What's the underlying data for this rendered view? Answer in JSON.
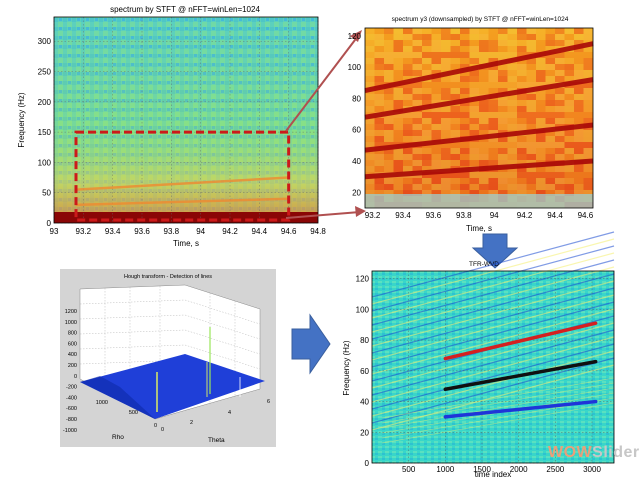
{
  "chart_data": [
    {
      "type": "heatmap",
      "title": "spectrum by STFT @ nFFT=winLen=1024",
      "xlabel": "Time, s",
      "ylabel": "Frequency (Hz)",
      "xlim": [
        93,
        94.8
      ],
      "ylim": [
        0,
        340
      ],
      "xticks": [
        "93",
        "93.2",
        "93.4",
        "93.6",
        "93.8",
        "94",
        "94.2",
        "94.4",
        "94.6",
        "94.8"
      ],
      "yticks": [
        "0",
        "50",
        "100",
        "150",
        "200",
        "250",
        "300"
      ],
      "highlight_box": {
        "time": [
          93.15,
          94.6
        ],
        "frequency": [
          5,
          150
        ],
        "style": "dashed",
        "color": "#cc1a1a"
      },
      "lines": [
        {
          "name": "line1",
          "time": [
            93.15,
            94.6
          ],
          "frequency": [
            30,
            40
          ]
        },
        {
          "name": "line2",
          "time": [
            93.15,
            94.6
          ],
          "frequency": [
            55,
            75
          ]
        }
      ]
    },
    {
      "type": "heatmap",
      "title": "spectrum y3 (downsampled) by STFT @ nFFT=winLen=1024",
      "xlabel": "Time, s",
      "ylabel": "",
      "xlim": [
        93.15,
        94.65
      ],
      "ylim": [
        10,
        125
      ],
      "xticks": [
        "93.2",
        "93.4",
        "93.6",
        "93.8",
        "94",
        "94.2",
        "94.4",
        "94.6"
      ],
      "yticks": [
        "20",
        "40",
        "60",
        "80",
        "100",
        "120"
      ],
      "lines": [
        {
          "time": [
            93.15,
            94.65
          ],
          "frequency": [
            30,
            40
          ]
        },
        {
          "time": [
            93.15,
            94.65
          ],
          "frequency": [
            47,
            63
          ]
        },
        {
          "time": [
            93.15,
            94.65
          ],
          "frequency": [
            68,
            92
          ]
        },
        {
          "time": [
            93.15,
            94.65
          ],
          "frequency": [
            85,
            115
          ]
        }
      ]
    },
    {
      "type": "surface",
      "title": "Hough transform - Detection of lines",
      "xlabel": "Rho",
      "ylabel": "Theta",
      "zticks": [
        "1200",
        "1000",
        "800",
        "600",
        "400",
        "200",
        "0",
        "-200",
        "-400",
        "-600",
        "-800",
        "-1000"
      ],
      "rho_ticks": [
        "1000",
        "500",
        "0"
      ],
      "theta_ticks": [
        "0",
        "2",
        "4",
        "6"
      ]
    },
    {
      "type": "heatmap",
      "title": "TFR-WVD",
      "xlabel": "time index",
      "ylabel": "Frequency (Hz)",
      "xlim": [
        0,
        3300
      ],
      "ylim": [
        0,
        125
      ],
      "xticks": [
        "500",
        "1000",
        "1500",
        "2000",
        "2500",
        "3000"
      ],
      "yticks": [
        "0",
        "20",
        "40",
        "60",
        "80",
        "100",
        "120"
      ],
      "series": [
        {
          "color": "#d42020",
          "x": [
            1000,
            3050
          ],
          "y": [
            68,
            91
          ]
        },
        {
          "color": "#101010",
          "x": [
            1000,
            3050
          ],
          "y": [
            48,
            66
          ]
        },
        {
          "color": "#1f35d8",
          "x": [
            1000,
            3050
          ],
          "y": [
            30,
            40
          ]
        }
      ]
    }
  ],
  "flow": {
    "down_arrow_color": "#4472c4",
    "right_arrow_color": "#4472c4"
  },
  "watermark": {
    "part1": "WOW",
    "part2": "Slider"
  }
}
